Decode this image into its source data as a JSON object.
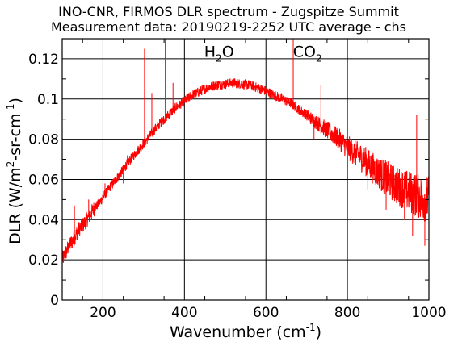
{
  "chart_data": {
    "type": "line",
    "title": "INO-CNR, FIRMOS DLR spectrum - Zugspitze Summit",
    "subtitle": "Measurement data: 20190219-2252 UTC average - chs",
    "xlabel": {
      "base": "Wavenumber (cm",
      "sup": "-1",
      "close": ")"
    },
    "ylabel": {
      "p1": "DLR (W/m",
      "sup1": "2",
      "p2": "-sr-cm",
      "sup2": "-1",
      "close": ")"
    },
    "xlim": [
      100,
      1000
    ],
    "ylim": [
      0,
      0.13
    ],
    "x_ticks": [
      200,
      400,
      600,
      800,
      1000
    ],
    "y_ticks": [
      0,
      0.02,
      0.04,
      0.06,
      0.08,
      0.1,
      0.12
    ],
    "y_tick_labels": [
      "0",
      "0.02",
      "0.04",
      "0.06",
      "0.08",
      "0.1",
      "0.12"
    ],
    "grid": true,
    "line_color": "#ff0000",
    "annotations": [
      {
        "key": "h2o",
        "base": "H",
        "sub": "2",
        "tail": "O",
        "x": 485,
        "y": 0.121
      },
      {
        "key": "co2",
        "base": "CO",
        "sub": "2",
        "tail": "",
        "x": 702,
        "y": 0.121
      }
    ],
    "series": [
      {
        "x": [
          100,
          110,
          120,
          130,
          140,
          150,
          160,
          170,
          180,
          190,
          200,
          220,
          240,
          260,
          280,
          300,
          320,
          340,
          360,
          380,
          400,
          420,
          440,
          460,
          480,
          500,
          520,
          540,
          560,
          580,
          600,
          620,
          640,
          660,
          680,
          700,
          720,
          740,
          760,
          780,
          800,
          820,
          840,
          860,
          880,
          900,
          920,
          940,
          960,
          980,
          1000
        ],
        "y": [
          0.02,
          0.024,
          0.028,
          0.031,
          0.035,
          0.037,
          0.04,
          0.043,
          0.046,
          0.048,
          0.051,
          0.057,
          0.062,
          0.068,
          0.073,
          0.078,
          0.083,
          0.088,
          0.092,
          0.096,
          0.099,
          0.102,
          0.104,
          0.106,
          0.107,
          0.1075,
          0.108,
          0.1075,
          0.107,
          0.1055,
          0.104,
          0.102,
          0.1,
          0.098,
          0.095,
          0.092,
          0.089,
          0.086,
          0.083,
          0.08,
          0.076,
          0.073,
          0.07,
          0.066,
          0.063,
          0.06,
          0.057,
          0.055,
          0.053,
          0.051,
          0.05
        ]
      }
    ],
    "spikes": [
      {
        "x": 130,
        "y": 0.047
      },
      {
        "x": 165,
        "y": 0.05
      },
      {
        "x": 205,
        "y": 0.058
      },
      {
        "x": 260,
        "y": 0.072
      },
      {
        "x": 302,
        "y": 0.125
      },
      {
        "x": 320,
        "y": 0.103
      },
      {
        "x": 353,
        "y": 0.13
      },
      {
        "x": 372,
        "y": 0.108
      },
      {
        "x": 667,
        "y": 0.13
      },
      {
        "x": 735,
        "y": 0.107
      },
      {
        "x": 970,
        "y": 0.092
      }
    ],
    "dips": [
      {
        "x": 137,
        "y": 0.03
      },
      {
        "x": 250,
        "y": 0.058
      },
      {
        "x": 718,
        "y": 0.08
      },
      {
        "x": 850,
        "y": 0.055
      },
      {
        "x": 895,
        "y": 0.045
      },
      {
        "x": 940,
        "y": 0.04
      },
      {
        "x": 960,
        "y": 0.032
      },
      {
        "x": 990,
        "y": 0.027
      }
    ]
  }
}
